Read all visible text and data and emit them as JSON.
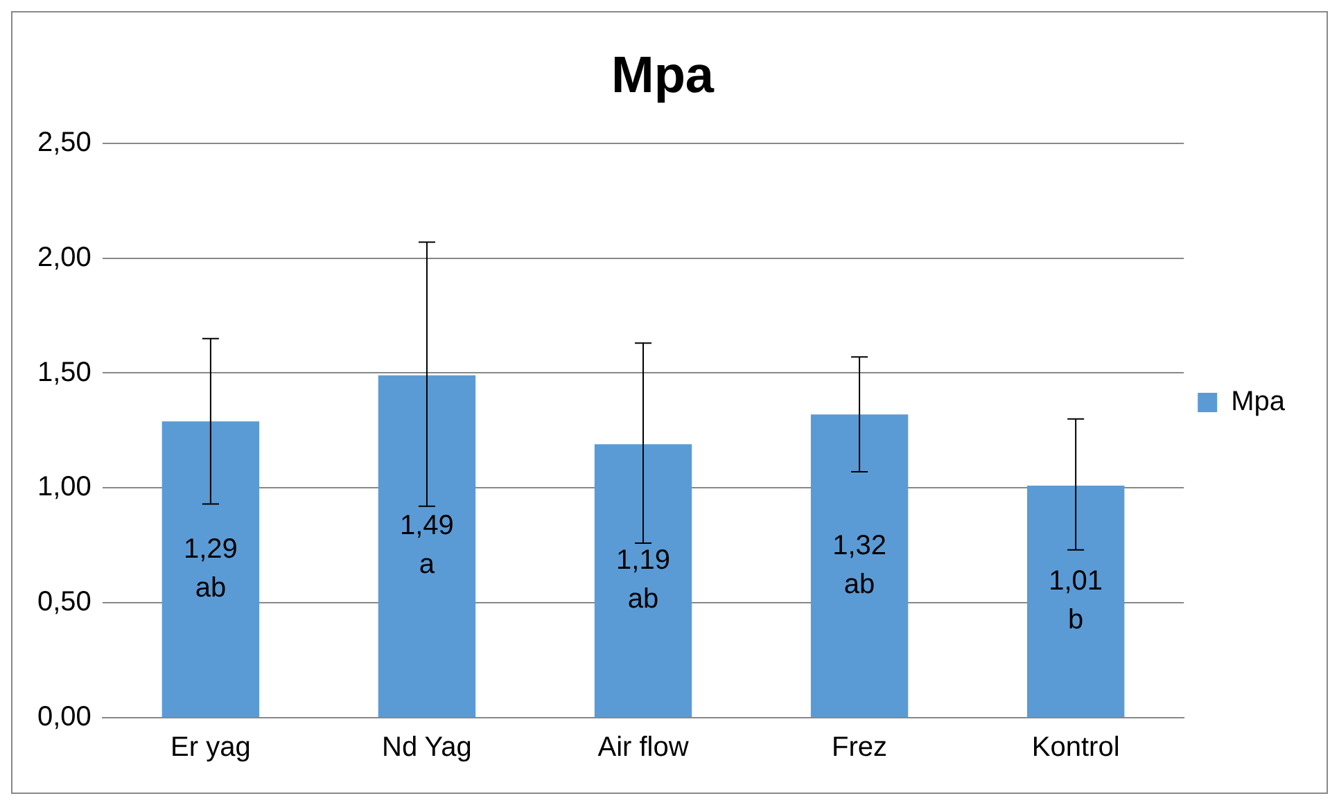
{
  "chart_data": {
    "type": "bar",
    "title": "Mpa",
    "categories": [
      "Er yag",
      "Nd Yag",
      "Air flow",
      "Frez",
      "Kontrol"
    ],
    "series": [
      {
        "name": "Mpa",
        "color": "#5b9bd5",
        "values": [
          1.29,
          1.49,
          1.19,
          1.32,
          1.01
        ],
        "errors": [
          [
            0.93,
            1.65
          ],
          [
            0.92,
            2.07
          ],
          [
            0.76,
            1.63
          ],
          [
            1.07,
            1.57
          ],
          [
            0.73,
            1.3
          ]
        ],
        "value_labels": [
          "1,29",
          "1,49",
          "1,19",
          "1,32",
          "1,01"
        ]
      }
    ],
    "annotations": [
      "ab",
      "a",
      "ab",
      "ab",
      "b"
    ],
    "ylim": [
      0,
      2.5
    ],
    "yticks": [
      {
        "value": 0,
        "label": "0,00"
      },
      {
        "value": 0.5,
        "label": "0,50"
      },
      {
        "value": 1,
        "label": "1,00"
      },
      {
        "value": 1.5,
        "label": "1,50"
      },
      {
        "value": 2,
        "label": "2,00"
      },
      {
        "value": 2.5,
        "label": "2,50"
      }
    ],
    "grid": "y",
    "legend": "right"
  }
}
